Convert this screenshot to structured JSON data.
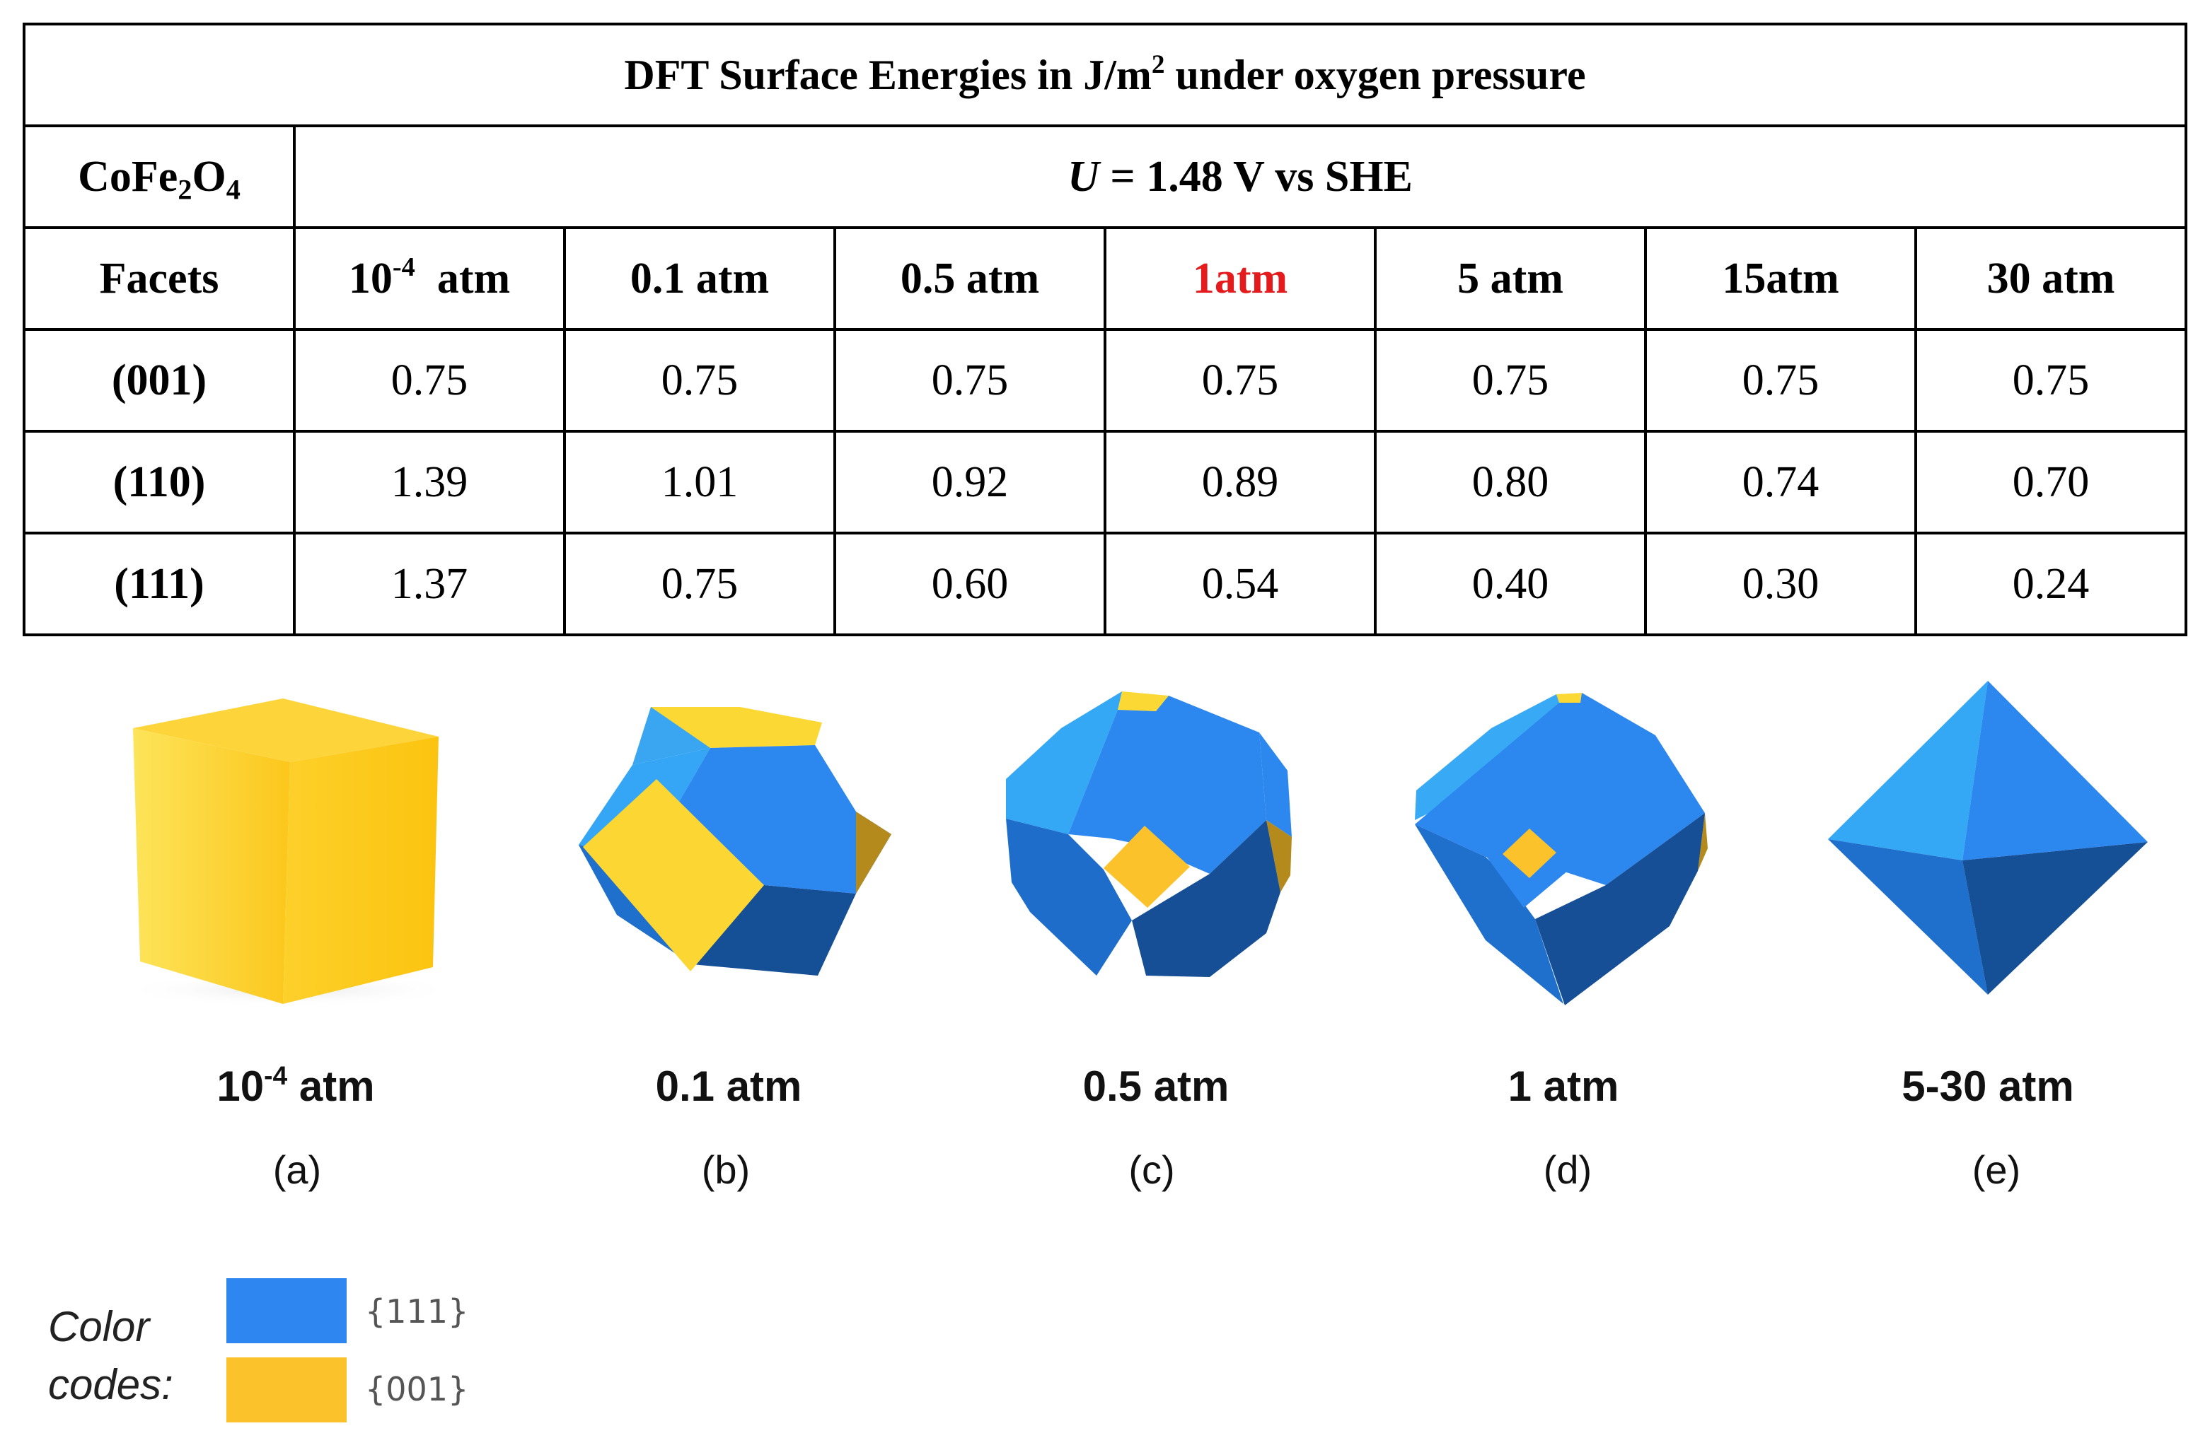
{
  "table": {
    "title_main": "DFT Surface Energies in J/m",
    "title_sup": "2",
    "title_rest": " under oxygen pressure",
    "compound": {
      "base1": "CoFe",
      "sub1": "2",
      "base2": "O",
      "sub2": "4"
    },
    "potential": {
      "var": "U",
      "rest": " = 1.48 V vs SHE"
    },
    "facets_header": "Facets",
    "pressures": [
      {
        "base": "10",
        "sup": "-4",
        "rest": "  atm"
      },
      {
        "base": "0.1 atm",
        "sup": "",
        "rest": ""
      },
      {
        "base": "0.5 atm",
        "sup": "",
        "rest": ""
      },
      {
        "base": "1atm",
        "sup": "",
        "rest": "",
        "highlight": true
      },
      {
        "base": "5 atm",
        "sup": "",
        "rest": ""
      },
      {
        "base": "15atm",
        "sup": "",
        "rest": ""
      },
      {
        "base": "30 atm",
        "sup": "",
        "rest": ""
      }
    ],
    "rows": [
      {
        "facet": "(001)",
        "values": [
          "0.75",
          "0.75",
          "0.75",
          "0.75",
          "0.75",
          "0.75",
          "0.75"
        ]
      },
      {
        "facet": "(110)",
        "values": [
          "1.39",
          "1.01",
          "0.92",
          "0.89",
          "0.80",
          "0.74",
          "0.70"
        ]
      },
      {
        "facet": "(111)",
        "values": [
          "1.37",
          "0.75",
          "0.60",
          "0.54",
          "0.40",
          "0.30",
          "0.24"
        ]
      }
    ],
    "highlight_color": "#e41a1c"
  },
  "shapes": [
    {
      "label_base": "10",
      "label_sup": "-4",
      "label_rest": " atm",
      "panel": "(a)",
      "icon": "cube-icon"
    },
    {
      "label_base": "0.1 atm",
      "label_sup": "",
      "label_rest": "",
      "panel": "(b)",
      "icon": "truncated-octahedron-icon"
    },
    {
      "label_base": "0.5 atm",
      "label_sup": "",
      "label_rest": "",
      "panel": "(c)",
      "icon": "truncated-octahedron-small-cap-icon"
    },
    {
      "label_base": "1 atm",
      "label_sup": "",
      "label_rest": "",
      "panel": "(d)",
      "icon": "truncated-octahedron-tiny-cap-icon"
    },
    {
      "label_base": "5-30 atm",
      "label_sup": "",
      "label_rest": "",
      "panel": "(e)",
      "icon": "octahedron-icon"
    }
  ],
  "legend": {
    "title_line1": "Color",
    "title_line2": "codes:",
    "items": [
      {
        "label": "{111}",
        "color": "#2e86f0"
      },
      {
        "label": "{001}",
        "color": "#fcc22b"
      }
    ]
  },
  "colors": {
    "blue_light": "#35a8f5",
    "blue_mid": "#2c86ee",
    "blue_dark": "#154f96",
    "yellow": "#fcd632",
    "yellow_dark": "#b58a1c"
  }
}
